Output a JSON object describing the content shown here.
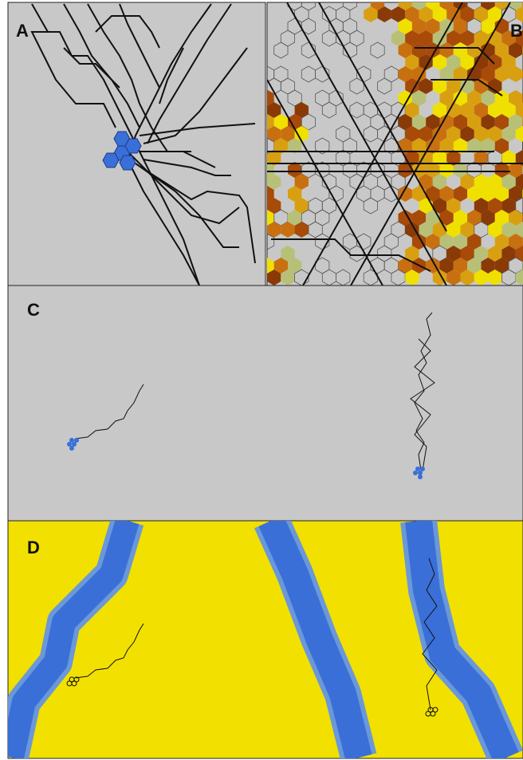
{
  "panels": [
    {
      "label": "A"
    },
    {
      "label": "B"
    },
    {
      "label": "C"
    },
    {
      "label": "D"
    }
  ]
}
